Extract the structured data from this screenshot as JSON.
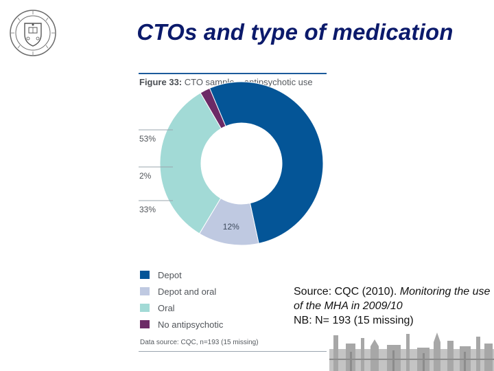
{
  "slide": {
    "title": "CTOs and  type of medication"
  },
  "figure": {
    "title_bold": "Figure 33:",
    "title_rest": " CTO sample – antipsychotic use",
    "source": "Data source: CQC, n=193 (15 missing)"
  },
  "note": {
    "line1": "Source: CQC (2010). ",
    "line1_italic": "Monitoring the use of the MHA in 2009/10",
    "line2": "NB: N= 193 (15 missing)"
  },
  "chart_data": {
    "type": "pie",
    "variant": "donut",
    "title": "Figure 33: CTO sample – antipsychotic use",
    "categories": [
      "Depot",
      "Depot and oral",
      "Oral",
      "No antipsychotic"
    ],
    "values": [
      53,
      12,
      33,
      2
    ],
    "value_labels": [
      "53%",
      "12%",
      "33%",
      "2%"
    ],
    "colors": [
      "#045597",
      "#bfc9e1",
      "#a2dad6",
      "#6c2a66"
    ],
    "legend_position": "bottom"
  },
  "colors": {
    "title": "#0b1a6b",
    "leader_line": "#9aa4ae"
  },
  "icons": {
    "logo": "university-crest-logo",
    "footer": "city-skyline-image"
  }
}
